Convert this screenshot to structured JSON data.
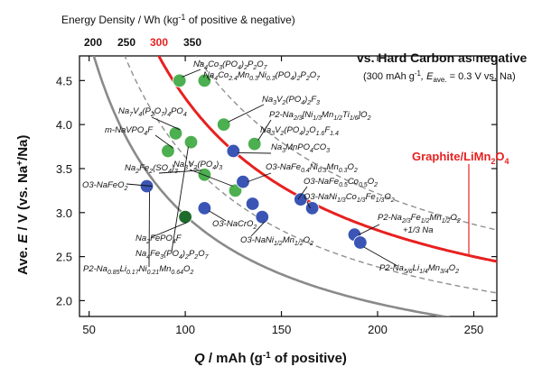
{
  "chart_data": {
    "type": "scatter",
    "energy_density_axis": {
      "label": "Energy Density  /  Wh (kg",
      "label_sup": "-1",
      "label_end": " of positive & negative)",
      "ticks": [
        {
          "label": "200",
          "color": "#111111"
        },
        {
          "label": "250",
          "color": "#111111"
        },
        {
          "label": "300",
          "color": "#e82020"
        },
        {
          "label": "350",
          "color": "#111111"
        }
      ]
    },
    "annotation": {
      "title": "vs. Hard Carbon as negative",
      "subtitle": "(300 mAh g",
      "subtitle_sup": "-1",
      "subtitle_mid": ", E",
      "subtitle_sub": "ave.",
      "subtitle_end": " = 0.3 V vs. Na)"
    },
    "graphite_label": "Graphite/LiMn",
    "graphite_label_sub1": "2",
    "graphite_label_mid": "O",
    "graphite_label_sub2": "4",
    "xlabel": "Q  /  mAh (g-1 of positive)",
    "xlabel_parts": {
      "var": "Q",
      "unit": "  /  mAh (g",
      "sup": "-1",
      "end": " of positive)"
    },
    "ylabel": "Ave. E  /  V (vs. Na+/Na)",
    "ylabel_parts": {
      "pre": "Ave. ",
      "var": "E",
      "mid": "  /  V (vs. Na",
      "sup": "+",
      "end": "/Na)"
    },
    "xlim": [
      45,
      262
    ],
    "ylim": [
      1.82,
      4.78
    ],
    "xticks": [
      50,
      100,
      150,
      200,
      250
    ],
    "yticks": [
      2.0,
      2.5,
      3.0,
      3.5,
      4.0,
      4.5
    ],
    "ytick_labels": [
      "2.0",
      "2.5",
      "3.0",
      "3.5",
      "4.0",
      "4.5"
    ],
    "curves": [
      {
        "name": "iso-energy 200 Wh/kg",
        "energy": 200,
        "style": "gray-solid"
      },
      {
        "name": "iso-energy 250 Wh/kg",
        "energy": 250,
        "style": "gray-dashed"
      },
      {
        "name": "iso-energy 300 Wh/kg (Graphite/LiMn2O4)",
        "energy": 300,
        "style": "red-solid"
      },
      {
        "name": "iso-energy 350 Wh/kg",
        "energy": 350,
        "style": "gray-dashed"
      }
    ],
    "points": [
      {
        "x": 97,
        "y": 4.5,
        "color": "green"
      },
      {
        "x": 110,
        "y": 4.5,
        "color": "green"
      },
      {
        "x": 95,
        "y": 3.9,
        "color": "green"
      },
      {
        "x": 103,
        "y": 3.8,
        "color": "green"
      },
      {
        "x": 91,
        "y": 3.7,
        "color": "green"
      },
      {
        "x": 120,
        "y": 4.0,
        "color": "green"
      },
      {
        "x": 136,
        "y": 3.78,
        "color": "green"
      },
      {
        "x": 110,
        "y": 3.43,
        "color": "green"
      },
      {
        "x": 126,
        "y": 3.25,
        "color": "green"
      },
      {
        "x": 100,
        "y": 2.95,
        "color": "darkgreen"
      },
      {
        "x": 80,
        "y": 3.3,
        "color": "blue"
      },
      {
        "x": 110,
        "y": 3.05,
        "color": "blue"
      },
      {
        "x": 125,
        "y": 3.7,
        "color": "blue"
      },
      {
        "x": 130,
        "y": 3.35,
        "color": "blue"
      },
      {
        "x": 135,
        "y": 3.1,
        "color": "blue"
      },
      {
        "x": 140,
        "y": 2.95,
        "color": "blue"
      },
      {
        "x": 160,
        "y": 3.15,
        "color": "blue"
      },
      {
        "x": 166,
        "y": 3.05,
        "color": "blue"
      },
      {
        "x": 188,
        "y": 2.75,
        "color": "blue"
      },
      {
        "x": 191,
        "y": 2.66,
        "color": "blue"
      }
    ],
    "compound_labels": [
      {
        "id": "nacopo-top1",
        "parts": [
          [
            "Na",
            ""
          ],
          [
            "4",
            1
          ],
          [
            "Co",
            ""
          ],
          [
            "3",
            1
          ],
          [
            "(PO",
            ""
          ],
          [
            "4",
            1
          ],
          [
            ")",
            ""
          ],
          [
            "2",
            1
          ],
          [
            "P",
            ""
          ],
          [
            "2",
            1
          ],
          [
            "O",
            ""
          ],
          [
            "7",
            1
          ]
        ]
      },
      {
        "id": "nacopo-top2",
        "parts": [
          [
            "Na",
            ""
          ],
          [
            "4",
            1
          ],
          [
            "Co",
            ""
          ],
          [
            "2.4",
            1
          ],
          [
            "Mn",
            ""
          ],
          [
            "0.3",
            1
          ],
          [
            "Ni",
            ""
          ],
          [
            "0.3",
            1
          ],
          [
            "(PO",
            ""
          ],
          [
            "4",
            1
          ],
          [
            ")",
            ""
          ],
          [
            "2",
            1
          ],
          [
            "P",
            ""
          ],
          [
            "2",
            1
          ],
          [
            "O",
            ""
          ],
          [
            "7",
            1
          ]
        ]
      },
      {
        "id": "navpo-f3",
        "parts": [
          [
            "Na",
            ""
          ],
          [
            "3",
            1
          ],
          [
            "V",
            ""
          ],
          [
            "2",
            1
          ],
          [
            "(PO",
            ""
          ],
          [
            "4",
            1
          ],
          [
            ")",
            ""
          ],
          [
            "2",
            1
          ],
          [
            "F",
            ""
          ],
          [
            "3",
            1
          ]
        ]
      },
      {
        "id": "na7v4",
        "parts": [
          [
            "Na",
            ""
          ],
          [
            "7",
            1
          ],
          [
            "V",
            ""
          ],
          [
            "4",
            1
          ],
          [
            "(P",
            ""
          ],
          [
            "2",
            1
          ],
          [
            "O",
            ""
          ],
          [
            "7",
            1
          ],
          [
            ")",
            ""
          ],
          [
            "4",
            1
          ],
          [
            "PO",
            ""
          ],
          [
            "4",
            1
          ]
        ]
      },
      {
        "id": "p2-nnmt",
        "parts": [
          [
            "P2-Na",
            ""
          ],
          [
            "2/3",
            1
          ],
          [
            "[Ni",
            ""
          ],
          [
            "1/3",
            1
          ],
          [
            "Mn",
            ""
          ],
          [
            "1/2",
            1
          ],
          [
            "Ti",
            ""
          ],
          [
            "1/6",
            1
          ],
          [
            "]O",
            ""
          ],
          [
            "2",
            1
          ]
        ]
      },
      {
        "id": "m-navpo4f",
        "parts": [
          [
            "m-NaVPO",
            ""
          ],
          [
            "4",
            1
          ],
          [
            "F",
            ""
          ]
        ]
      },
      {
        "id": "navpo-of",
        "parts": [
          [
            "Na",
            ""
          ],
          [
            "3",
            1
          ],
          [
            "V",
            ""
          ],
          [
            "2",
            1
          ],
          [
            "(PO",
            ""
          ],
          [
            "4",
            1
          ],
          [
            ")",
            ""
          ],
          [
            "2",
            1
          ],
          [
            "O",
            ""
          ],
          [
            "1.6",
            1
          ],
          [
            "F",
            ""
          ],
          [
            "1.4",
            1
          ]
        ]
      },
      {
        "id": "namnpoco3",
        "parts": [
          [
            "Na",
            ""
          ],
          [
            "3",
            1
          ],
          [
            "MnPO",
            ""
          ],
          [
            "4",
            1
          ],
          [
            "CO",
            ""
          ],
          [
            "3",
            1
          ]
        ]
      },
      {
        "id": "na2fe2so4",
        "parts": [
          [
            "Na",
            ""
          ],
          [
            "2",
            1
          ],
          [
            "Fe",
            ""
          ],
          [
            "2",
            1
          ],
          [
            "(SO",
            ""
          ],
          [
            "4",
            1
          ],
          [
            ")",
            ""
          ],
          [
            "3",
            1
          ]
        ]
      },
      {
        "id": "na3v2po43",
        "parts": [
          [
            "Na",
            ""
          ],
          [
            "3",
            1
          ],
          [
            "V",
            ""
          ],
          [
            "2",
            1
          ],
          [
            "(PO",
            ""
          ],
          [
            "4",
            1
          ],
          [
            ")",
            ""
          ],
          [
            "3",
            1
          ]
        ]
      },
      {
        "id": "o3-nfnm",
        "parts": [
          [
            "O3-NaFe",
            ""
          ],
          [
            "0.4",
            1
          ],
          [
            "Ni",
            ""
          ],
          [
            "0.3",
            1
          ],
          [
            "Mn",
            ""
          ],
          [
            "0.3",
            1
          ],
          [
            "O",
            ""
          ],
          [
            "2",
            1
          ]
        ]
      },
      {
        "id": "o3-nafeco",
        "parts": [
          [
            "O3-NaFe",
            ""
          ],
          [
            "0.5",
            1
          ],
          [
            "Co",
            ""
          ],
          [
            "0.5",
            1
          ],
          [
            "O",
            ""
          ],
          [
            "2",
            1
          ]
        ]
      },
      {
        "id": "o3-nanicofe",
        "parts": [
          [
            "O3-NaNi",
            ""
          ],
          [
            "1/3",
            1
          ],
          [
            "Co",
            ""
          ],
          [
            "1/3",
            1
          ],
          [
            "Fe",
            ""
          ],
          [
            "1/3",
            1
          ],
          [
            "O",
            ""
          ],
          [
            "2",
            1
          ]
        ]
      },
      {
        "id": "o3-nafeo2",
        "parts": [
          [
            "O3-NaFeO",
            ""
          ],
          [
            "2",
            1
          ]
        ]
      },
      {
        "id": "o3-nacro2",
        "parts": [
          [
            "O3-NaCrO",
            ""
          ],
          [
            "2",
            1
          ]
        ]
      },
      {
        "id": "o3-nanimn",
        "parts": [
          [
            "O3-NaNi",
            ""
          ],
          [
            "1/2",
            1
          ],
          [
            "Mn",
            ""
          ],
          [
            "1/2",
            1
          ],
          [
            "O",
            ""
          ],
          [
            "2",
            1
          ]
        ]
      },
      {
        "id": "p2-nafemn",
        "parts": [
          [
            "P2-Na",
            ""
          ],
          [
            "2/3",
            1
          ],
          [
            "Fe",
            ""
          ],
          [
            "1/2",
            1
          ],
          [
            "Mn",
            ""
          ],
          [
            "1/2",
            1
          ],
          [
            "O",
            ""
          ],
          [
            "2",
            1
          ]
        ]
      },
      {
        "id": "plus-na",
        "parts": [
          [
            "+1/3 Na",
            ""
          ]
        ]
      },
      {
        "id": "na2fepo4f",
        "parts": [
          [
            "Na",
            ""
          ],
          [
            "2",
            1
          ],
          [
            "FePO",
            ""
          ],
          [
            "4",
            1
          ],
          [
            "F",
            ""
          ]
        ]
      },
      {
        "id": "na4fe3",
        "parts": [
          [
            "Na",
            ""
          ],
          [
            "4",
            1
          ],
          [
            "Fe",
            ""
          ],
          [
            "3",
            1
          ],
          [
            "(PO",
            ""
          ],
          [
            "4",
            1
          ],
          [
            ")",
            ""
          ],
          [
            "2",
            1
          ],
          [
            "P",
            ""
          ],
          [
            "2",
            1
          ],
          [
            "O",
            ""
          ],
          [
            "7",
            1
          ]
        ]
      },
      {
        "id": "p2-nalinimn",
        "parts": [
          [
            "P2-Na",
            ""
          ],
          [
            "0.85",
            1
          ],
          [
            "Li",
            ""
          ],
          [
            "0.17",
            1
          ],
          [
            "Ni",
            ""
          ],
          [
            "0.21",
            1
          ],
          [
            "Mn",
            ""
          ],
          [
            "0.64",
            1
          ],
          [
            "O",
            ""
          ],
          [
            "2",
            1
          ]
        ]
      },
      {
        "id": "p2-nalimn",
        "parts": [
          [
            "P2-Na",
            ""
          ],
          [
            "5/6",
            1
          ],
          [
            "Li",
            ""
          ],
          [
            "1/4",
            1
          ],
          [
            "Mn",
            ""
          ],
          [
            "3/4",
            1
          ],
          [
            "O",
            ""
          ],
          [
            "2",
            1
          ]
        ]
      }
    ]
  }
}
